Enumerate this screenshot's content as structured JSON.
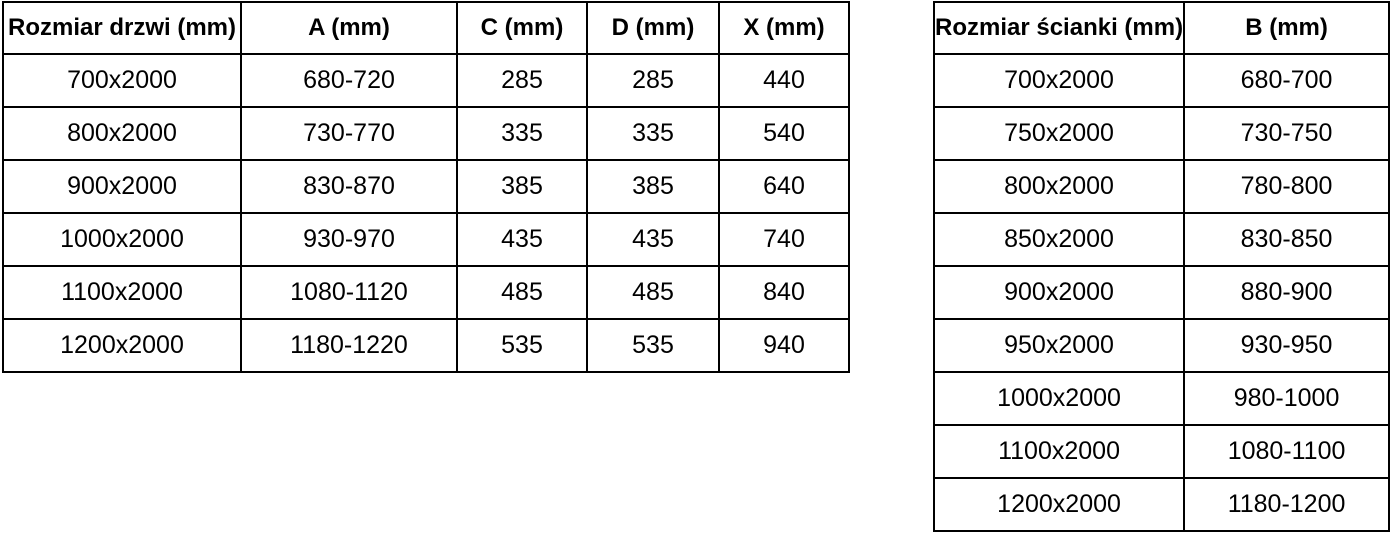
{
  "colors": {
    "background": "#ffffff",
    "border": "#000000",
    "text": "#000000"
  },
  "tables": [
    {
      "name": "door-dimensions",
      "headers": [
        "Rozmiar drzwi (mm)",
        "A (mm)",
        "C (mm)",
        "D (mm)",
        "X (mm)"
      ],
      "rows": [
        [
          "700x2000",
          "680-720",
          "285",
          "285",
          "440"
        ],
        [
          "800x2000",
          "730-770",
          "335",
          "335",
          "540"
        ],
        [
          "900x2000",
          "830-870",
          "385",
          "385",
          "640"
        ],
        [
          "1000x2000",
          "930-970",
          "435",
          "435",
          "740"
        ],
        [
          "1100x2000",
          "1080-1120",
          "485",
          "485",
          "840"
        ],
        [
          "1200x2000",
          "1180-1220",
          "535",
          "535",
          "940"
        ]
      ]
    },
    {
      "name": "wall-panel-dimensions",
      "headers": [
        "Rozmiar ścianki (mm)",
        "B (mm)"
      ],
      "rows": [
        [
          "700x2000",
          "680-700"
        ],
        [
          "750x2000",
          "730-750"
        ],
        [
          "800x2000",
          "780-800"
        ],
        [
          "850x2000",
          "830-850"
        ],
        [
          "900x2000",
          "880-900"
        ],
        [
          "950x2000",
          "930-950"
        ],
        [
          "1000x2000",
          "980-1000"
        ],
        [
          "1100x2000",
          "1080-1100"
        ],
        [
          "1200x2000",
          "1180-1200"
        ]
      ]
    }
  ]
}
